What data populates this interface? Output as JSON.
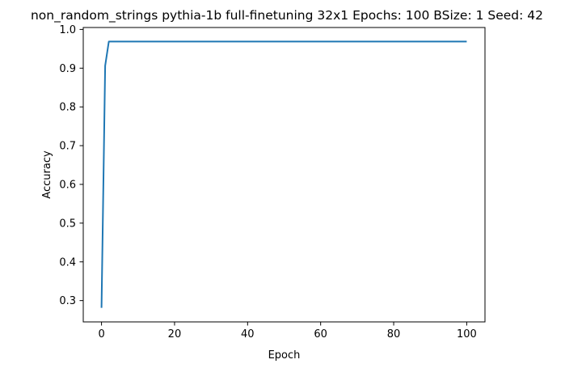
{
  "chart_data": {
    "type": "line",
    "title": "non_random_strings pythia-1b full-finetuning 32x1 Epochs: 100 BSize: 1 Seed: 42",
    "xlabel": "Epoch",
    "ylabel": "Accuracy",
    "xlim": [
      -5,
      105
    ],
    "ylim": [
      0.245,
      1.005
    ],
    "xticks": [
      0,
      20,
      40,
      60,
      80,
      100
    ],
    "xtick_labels": [
      "0",
      "20",
      "40",
      "60",
      "80",
      "100"
    ],
    "yticks": [
      0.3,
      0.4,
      0.5,
      0.6,
      0.7,
      0.8,
      0.9,
      1.0
    ],
    "ytick_labels": [
      "0.3",
      "0.4",
      "0.5",
      "0.6",
      "0.7",
      "0.8",
      "0.9",
      "1.0"
    ],
    "grid": false,
    "series": [
      {
        "name": "Accuracy",
        "color": "#1f77b4",
        "x": [
          0,
          1,
          2,
          100
        ],
        "y": [
          0.28125,
          0.90625,
          0.96875,
          0.96875
        ]
      }
    ]
  }
}
